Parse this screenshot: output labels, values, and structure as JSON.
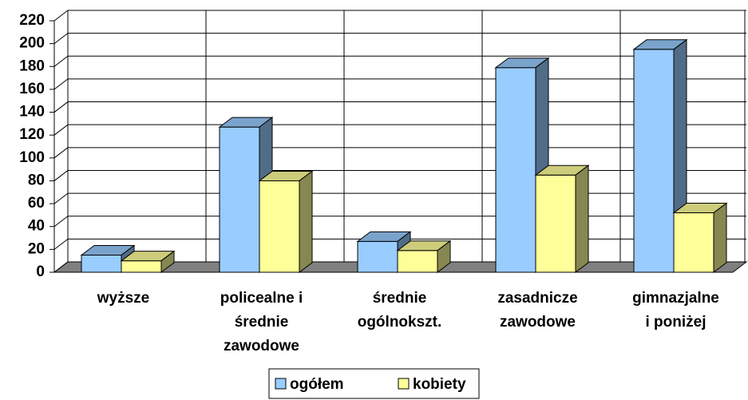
{
  "chart_data": {
    "type": "bar3d",
    "categories": [
      "wyższe",
      "policealne i\nśrednie\nzawodowe",
      "średnie\nogólnokszt.",
      "zasadnicze\nzawodowe",
      "gimnazjalne\ni poniżej"
    ],
    "series": [
      {
        "name": "ogółem",
        "color": "#99ccff",
        "values": [
          15,
          127,
          27,
          179,
          195
        ]
      },
      {
        "name": "kobiety",
        "color": "#ffff99",
        "values": [
          10,
          80,
          19,
          85,
          52
        ]
      }
    ],
    "ylim": [
      0,
      220
    ],
    "yticks": [
      0,
      20,
      40,
      60,
      80,
      100,
      120,
      140,
      160,
      180,
      200,
      220
    ],
    "grid": true,
    "legend": "bottom"
  }
}
